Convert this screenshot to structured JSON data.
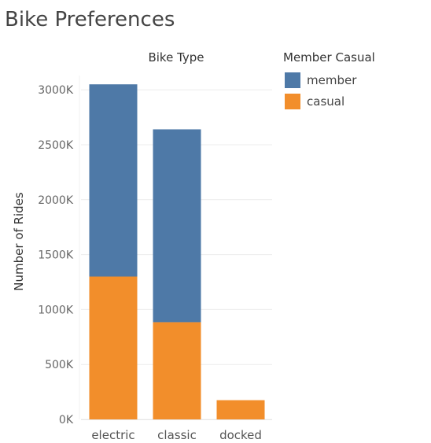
{
  "chart_data": {
    "type": "bar",
    "stacked": true,
    "title": "Bike Preferences",
    "column_header": "Bike Type",
    "xlabel": "",
    "ylabel": "Number of Rides",
    "categories": [
      "electric",
      "classic",
      "docked"
    ],
    "series": [
      {
        "name": "casual",
        "color": "#f28e2b",
        "values": [
          1300,
          885,
          175
        ]
      },
      {
        "name": "member",
        "color": "#4e79a7",
        "values": [
          1750,
          1755,
          0
        ]
      }
    ],
    "legend": {
      "title": "Member Casual",
      "order": [
        "member",
        "casual"
      ],
      "placement": "right"
    },
    "ylim": [
      0,
      3000
    ],
    "yticks": [
      0,
      500,
      1000,
      1500,
      2000,
      2500,
      3000
    ],
    "ytick_labels": [
      "0K",
      "500K",
      "1000K",
      "1500K",
      "2000K",
      "2500K",
      "3000K"
    ],
    "grid": true
  }
}
